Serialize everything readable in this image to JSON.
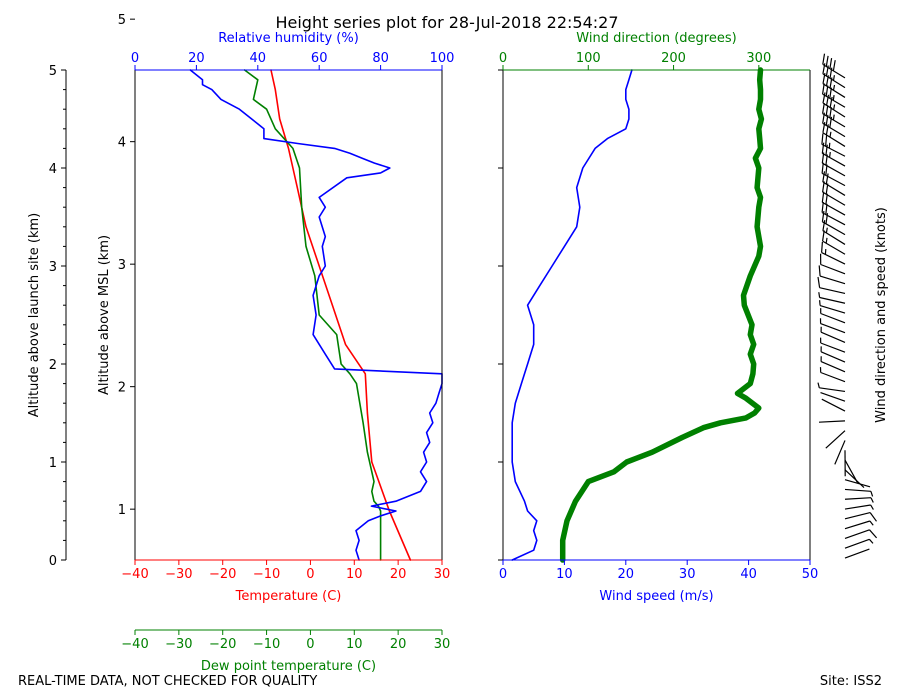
{
  "title": "Height series plot for 28-Jul-2018 22:54:27",
  "footer_left": "REAL-TIME DATA, NOT CHECKED FOR QUALITY",
  "footer_right": "Site: ISS2",
  "colors": {
    "red": "#ff0000",
    "blue": "#0000ff",
    "green": "#008000",
    "black": "#000000"
  },
  "chart_data": [
    {
      "type": "line",
      "panel": "left",
      "y_left": {
        "label": "Altitude above launch site (km)",
        "range": [
          0,
          5
        ],
        "ticks": [
          "0",
          "1",
          "2",
          "3",
          "4",
          "5"
        ]
      },
      "y_right": {
        "label": "Altitude above MSL (km)",
        "range": [
          0.585,
          4.585
        ],
        "ticks": [
          "1",
          "2",
          "3",
          "4",
          "5"
        ]
      },
      "x_bottom": {
        "label": "Temperature (C)",
        "range": [
          -40,
          30
        ],
        "ticks": [
          "−40",
          "−30",
          "−20",
          "−10",
          "0",
          "10",
          "20",
          "30"
        ]
      },
      "x_bottom2": {
        "label": "Dew point temperature (C)",
        "range": [
          -40,
          30
        ],
        "ticks": [
          "−40",
          "−30",
          "−20",
          "−10",
          "0",
          "10",
          "20",
          "30"
        ]
      },
      "x_top": {
        "label": "Relative humidity (%)",
        "range": [
          0,
          100
        ],
        "ticks": [
          "0",
          "20",
          "40",
          "60",
          "80",
          "100"
        ]
      },
      "series": [
        {
          "name": "Temperature",
          "color": "red",
          "x_axis": "bottom",
          "points": [
            [
              22.8,
              0
            ],
            [
              18,
              0.5
            ],
            [
              14,
              1.0
            ],
            [
              13,
              1.5
            ],
            [
              12.5,
              1.9
            ],
            [
              8,
              2.2
            ],
            [
              5,
              2.6
            ],
            [
              2,
              3.0
            ],
            [
              -1,
              3.4
            ],
            [
              -3,
              3.8
            ],
            [
              -4,
              4.0
            ],
            [
              -5,
              4.2
            ],
            [
              -7,
              4.5
            ],
            [
              -8,
              4.8
            ],
            [
              -9,
              5.0
            ]
          ]
        },
        {
          "name": "Dew point",
          "color": "green",
          "x_axis": "bottom",
          "points": [
            [
              16,
              0
            ],
            [
              16,
              0.5
            ],
            [
              15.5,
              0.55
            ],
            [
              14.5,
              0.6
            ],
            [
              14,
              0.7
            ],
            [
              14.5,
              0.8
            ],
            [
              13,
              1.1
            ],
            [
              12,
              1.4
            ],
            [
              10.5,
              1.8
            ],
            [
              9,
              1.9
            ],
            [
              7,
              2.0
            ],
            [
              6,
              2.3
            ],
            [
              2,
              2.5
            ],
            [
              1,
              2.9
            ],
            [
              -1,
              3.2
            ],
            [
              -2,
              3.6
            ],
            [
              -2.5,
              4.0
            ],
            [
              -4,
              4.2
            ],
            [
              -8,
              4.4
            ],
            [
              -10,
              4.6
            ],
            [
              -13,
              4.7
            ],
            [
              -12,
              4.9
            ],
            [
              -15,
              5.0
            ]
          ]
        },
        {
          "name": "Relative humidity",
          "color": "blue",
          "x_axis": "top",
          "points": [
            [
              73,
              0
            ],
            [
              72,
              0.1
            ],
            [
              73,
              0.2
            ],
            [
              72,
              0.3
            ],
            [
              76,
              0.4
            ],
            [
              80,
              0.45
            ],
            [
              85,
              0.5
            ],
            [
              77,
              0.55
            ],
            [
              85,
              0.6
            ],
            [
              93,
              0.7
            ],
            [
              95,
              0.8
            ],
            [
              93,
              0.9
            ],
            [
              95,
              1.0
            ],
            [
              94,
              1.1
            ],
            [
              96,
              1.2
            ],
            [
              95,
              1.3
            ],
            [
              97,
              1.4
            ],
            [
              96,
              1.5
            ],
            [
              98,
              1.6
            ],
            [
              99,
              1.7
            ],
            [
              100,
              1.8
            ],
            [
              100,
              1.9
            ],
            [
              65,
              1.95
            ],
            [
              62,
              2.1
            ],
            [
              58,
              2.3
            ],
            [
              59,
              2.5
            ],
            [
              58,
              2.7
            ],
            [
              60,
              2.9
            ],
            [
              62,
              3.0
            ],
            [
              61,
              3.2
            ],
            [
              62,
              3.3
            ],
            [
              60,
              3.5
            ],
            [
              62,
              3.6
            ],
            [
              60,
              3.7
            ],
            [
              69,
              3.9
            ],
            [
              80,
              3.95
            ],
            [
              83,
              4.0
            ],
            [
              78,
              4.05
            ],
            [
              74,
              4.1
            ],
            [
              70,
              4.15
            ],
            [
              65,
              4.2
            ],
            [
              53,
              4.25
            ],
            [
              42,
              4.3
            ],
            [
              42,
              4.4
            ],
            [
              40,
              4.45
            ],
            [
              38,
              4.5
            ],
            [
              34,
              4.6
            ],
            [
              28,
              4.7
            ],
            [
              25,
              4.8
            ],
            [
              22,
              4.85
            ],
            [
              22,
              4.9
            ],
            [
              18,
              5.0
            ]
          ]
        }
      ]
    },
    {
      "type": "line",
      "panel": "right",
      "y_left": {
        "label": "",
        "range": [
          0,
          5
        ],
        "ticks": []
      },
      "x_bottom": {
        "label": "Wind speed (m/s)",
        "range": [
          0,
          50
        ],
        "ticks": [
          "0",
          "10",
          "20",
          "30",
          "40",
          "50"
        ]
      },
      "x_top": {
        "label": "Wind direction (degrees)",
        "range": [
          0,
          360
        ],
        "ticks": [
          "0",
          "100",
          "200",
          "300"
        ]
      },
      "series": [
        {
          "name": "Wind speed",
          "color": "blue",
          "x_axis": "bottom",
          "points": [
            [
              1.5,
              0
            ],
            [
              5,
              0.1
            ],
            [
              5.5,
              0.2
            ],
            [
              5,
              0.3
            ],
            [
              5.5,
              0.4
            ],
            [
              4,
              0.5
            ],
            [
              3.5,
              0.6
            ],
            [
              2,
              0.8
            ],
            [
              1.5,
              1.0
            ],
            [
              1.5,
              1.2
            ],
            [
              1.5,
              1.4
            ],
            [
              2,
              1.6
            ],
            [
              3,
              1.8
            ],
            [
              4,
              2.0
            ],
            [
              5,
              2.2
            ],
            [
              5,
              2.4
            ],
            [
              4,
              2.6
            ],
            [
              6,
              2.8
            ],
            [
              8,
              3.0
            ],
            [
              10,
              3.2
            ],
            [
              12,
              3.4
            ],
            [
              12.5,
              3.6
            ],
            [
              12,
              3.8
            ],
            [
              13,
              4.0
            ],
            [
              15,
              4.2
            ],
            [
              17,
              4.3
            ],
            [
              20,
              4.4
            ],
            [
              20.5,
              4.5
            ],
            [
              20.5,
              4.6
            ],
            [
              20,
              4.7
            ],
            [
              20,
              4.8
            ],
            [
              20.5,
              4.9
            ],
            [
              21,
              5.0
            ]
          ]
        },
        {
          "name": "Wind direction",
          "color": "green",
          "x_axis": "top",
          "points": [
            [
              70,
              0
            ],
            [
              70,
              0.2
            ],
            [
              75,
              0.4
            ],
            [
              85,
              0.6
            ],
            [
              100,
              0.8
            ],
            [
              130,
              0.9
            ],
            [
              145,
              1.0
            ],
            [
              175,
              1.1
            ],
            [
              210,
              1.25
            ],
            [
              235,
              1.35
            ],
            [
              255,
              1.4
            ],
            [
              285,
              1.45
            ],
            [
              295,
              1.5
            ],
            [
              300,
              1.55
            ],
            [
              285,
              1.65
            ],
            [
              275,
              1.7
            ],
            [
              290,
              1.8
            ],
            [
              293,
              1.9
            ],
            [
              294,
              2.0
            ],
            [
              290,
              2.1
            ],
            [
              294,
              2.2
            ],
            [
              290,
              2.3
            ],
            [
              292,
              2.4
            ],
            [
              283,
              2.6
            ],
            [
              282,
              2.7
            ],
            [
              290,
              2.9
            ],
            [
              300,
              3.1
            ],
            [
              302,
              3.2
            ],
            [
              298,
              3.4
            ],
            [
              300,
              3.6
            ],
            [
              302,
              3.7
            ],
            [
              298,
              3.8
            ],
            [
              300,
              4.0
            ],
            [
              296,
              4.1
            ],
            [
              302,
              4.2
            ],
            [
              301,
              4.3
            ],
            [
              300,
              4.4
            ],
            [
              303,
              4.5
            ],
            [
              300,
              4.6
            ],
            [
              302,
              4.7
            ],
            [
              302,
              4.8
            ],
            [
              301,
              4.9
            ],
            [
              302,
              5.0
            ]
          ]
        }
      ]
    },
    {
      "type": "wind_barbs",
      "label": "Wind direction and speed (knots)"
    }
  ]
}
